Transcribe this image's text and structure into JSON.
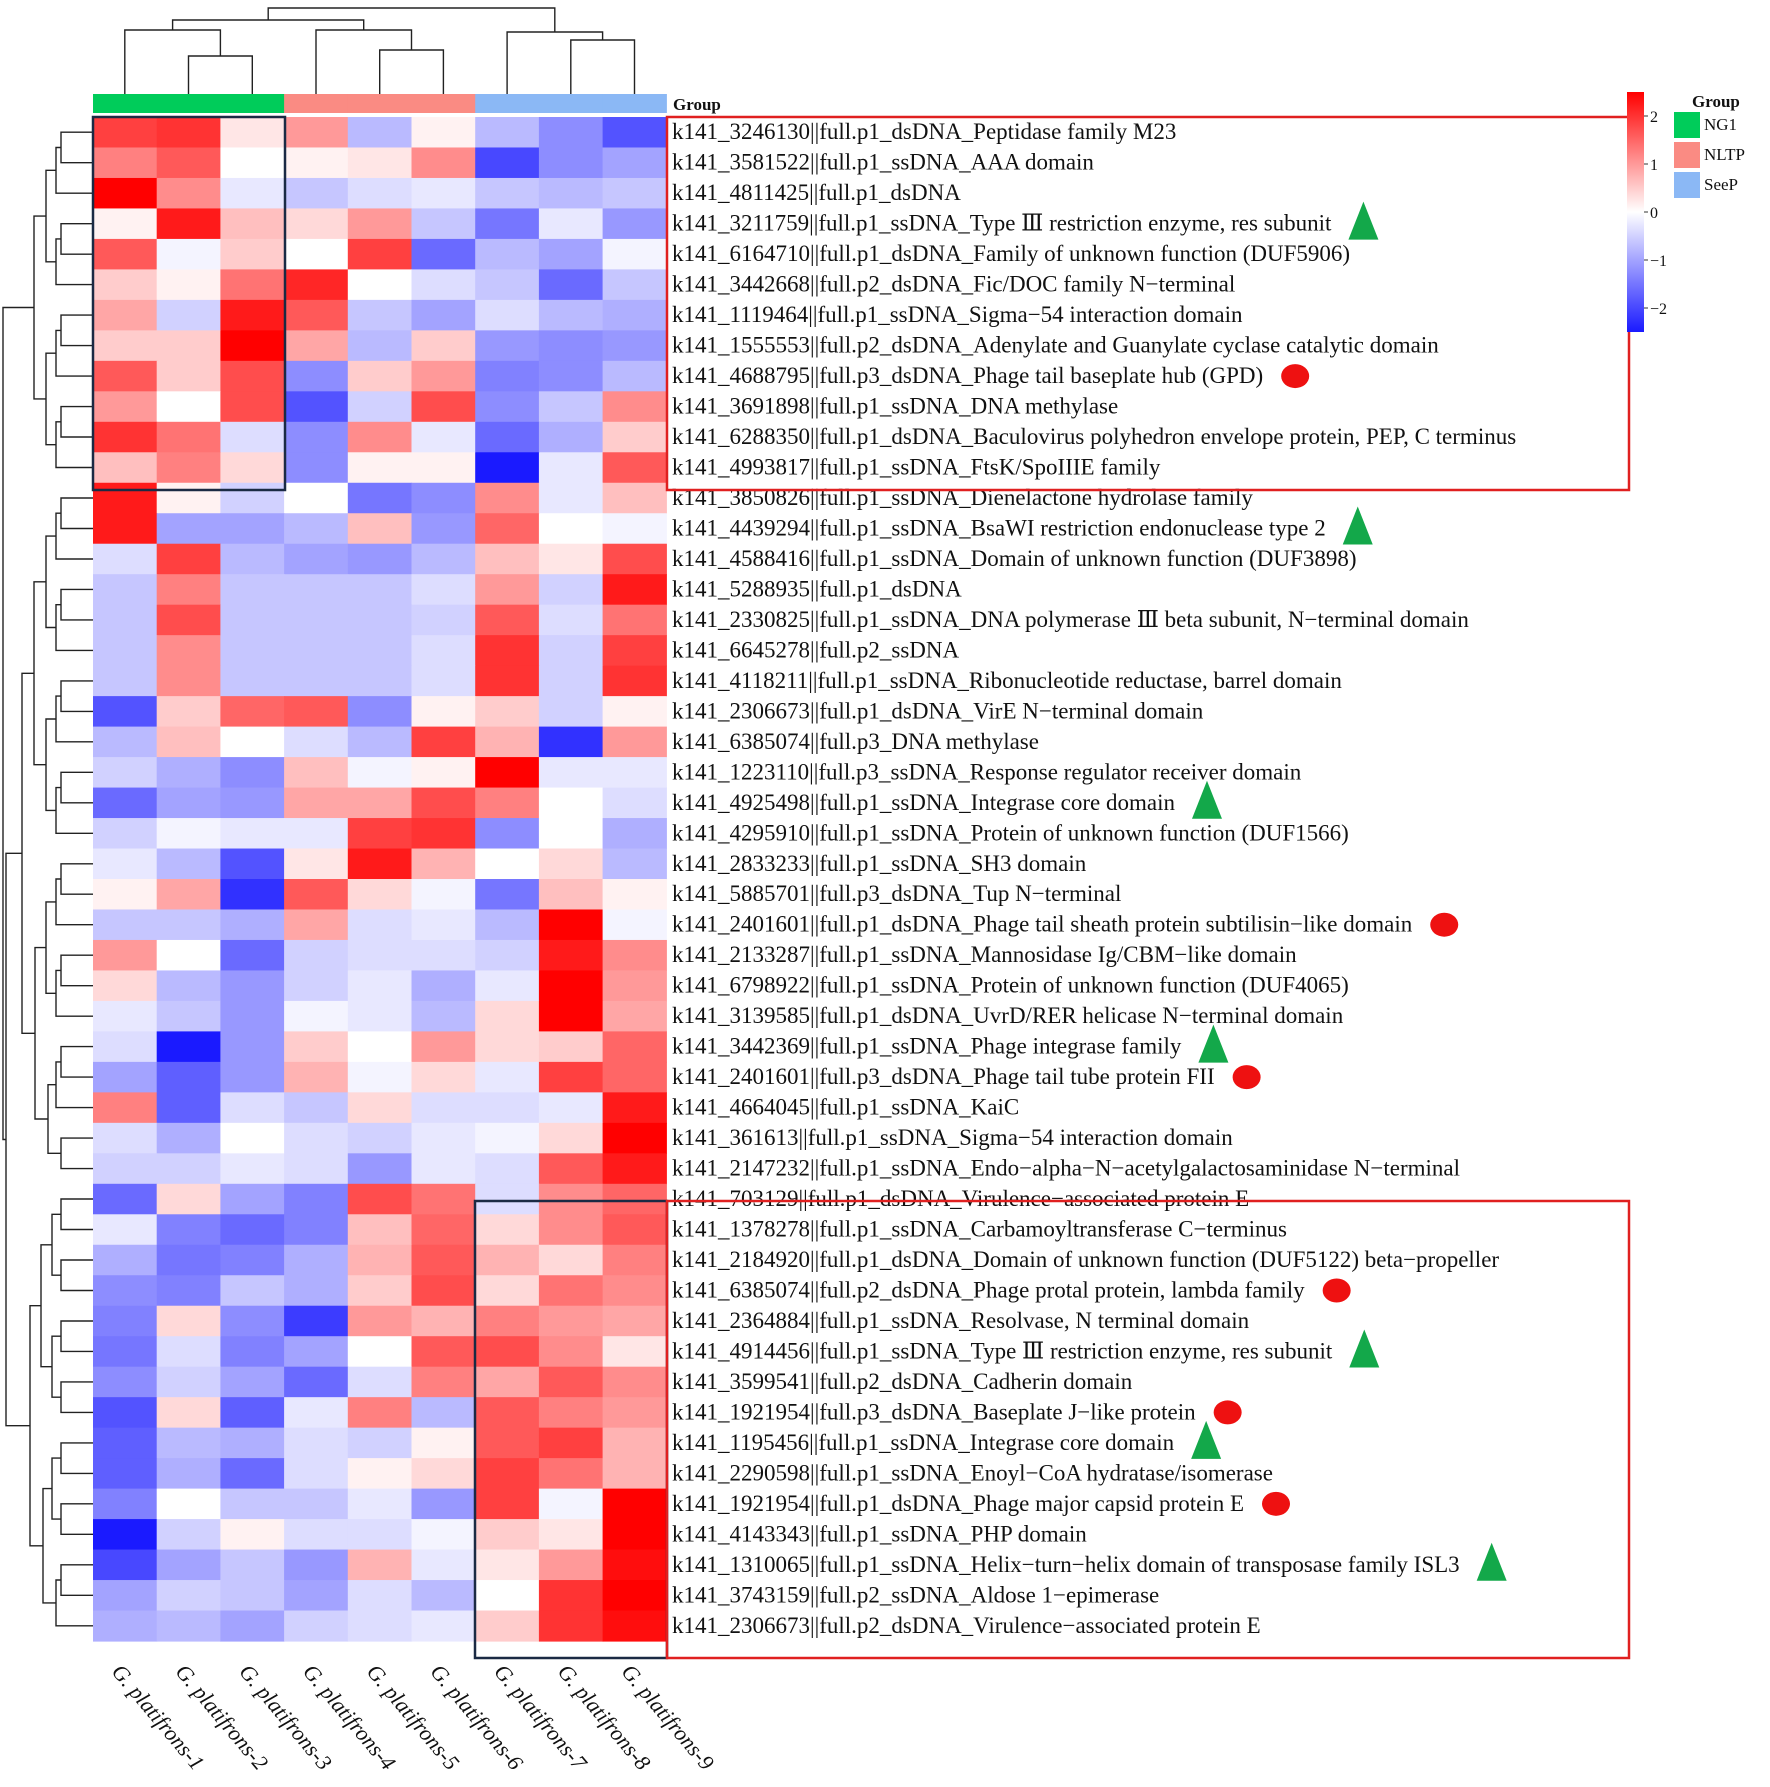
{
  "chart_data": {
    "type": "heatmap",
    "color_scale": {
      "min": -2,
      "max": 2,
      "ticks": [
        "2",
        "1",
        "0",
        "−1",
        "−2"
      ],
      "low": "#1a1aff",
      "mid": "#ffffff",
      "high": "#ff0000"
    },
    "group_bar_title": "Group",
    "legend": {
      "title": "Group",
      "entries": [
        {
          "name": "NG1",
          "color": "#00cc5a"
        },
        {
          "name": "NLTP",
          "color": "#fa8b83"
        },
        {
          "name": "SeeP",
          "color": "#8bb8f5"
        }
      ]
    },
    "columns": [
      "G. platifrons-1",
      "G. platifrons-2",
      "G. platifrons-3",
      "G. platifrons-4",
      "G. platifrons-5",
      "G. platifrons-6",
      "G. platifrons-7",
      "G. platifrons-8",
      "G. platifrons-9"
    ],
    "column_groups": [
      "NG1",
      "NG1",
      "NG1",
      "NLTP",
      "NLTP",
      "NLTP",
      "SeeP",
      "SeeP",
      "SeeP"
    ],
    "rows": [
      "k141_3246130||full.p1_dsDNA_Peptidase family M23",
      "k141_3581522||full.p1_ssDNA_AAA domain",
      "k141_4811425||full.p1_dsDNA",
      "k141_3211759||full.p1_ssDNA_Type Ⅲ restriction enzyme, res subunit",
      "k141_6164710||full.p1_dsDNA_Family of unknown function (DUF5906)",
      "k141_3442668||full.p2_dsDNA_Fic/DOC family N−terminal",
      "k141_1119464||full.p1_ssDNA_Sigma−54 interaction domain",
      "k141_1555553||full.p2_dsDNA_Adenylate and Guanylate cyclase catalytic domain",
      "k141_4688795||full.p3_dsDNA_Phage tail baseplate hub (GPD)",
      "k141_3691898||full.p1_ssDNA_DNA methylase",
      "k141_6288350||full.p1_dsDNA_Baculovirus polyhedron envelope protein, PEP, C terminus",
      "k141_4993817||full.p1_ssDNA_FtsK/SpoIIIE family",
      "k141_3850826||full.p1_ssDNA_Dienelactone hydrolase family",
      "k141_4439294||full.p1_ssDNA_BsaWI restriction endonuclease type 2",
      "k141_4588416||full.p1_ssDNA_Domain of unknown function (DUF3898)",
      "k141_5288935||full.p1_dsDNA",
      "k141_2330825||full.p1_ssDNA_DNA polymerase Ⅲ beta subunit, N−terminal domain",
      "k141_6645278||full.p2_ssDNA",
      "k141_4118211||full.p1_ssDNA_Ribonucleotide reductase, barrel domain",
      "k141_2306673||full.p1_dsDNA_VirE N−terminal domain",
      "k141_6385074||full.p3_DNA methylase",
      "k141_1223110||full.p3_ssDNA_Response regulator receiver domain",
      "k141_4925498||full.p1_ssDNA_Integrase core domain",
      "k141_4295910||full.p1_ssDNA_Protein of unknown function (DUF1566)",
      "k141_2833233||full.p1_ssDNA_SH3 domain",
      "k141_5885701||full.p3_dsDNA_Tup N−terminal",
      "k141_2401601||full.p1_dsDNA_Phage tail sheath protein subtilisin−like domain",
      "k141_2133287||full.p1_ssDNA_Mannosidase Ig/CBM−like domain",
      "k141_6798922||full.p1_ssDNA_Protein of unknown function (DUF4065)",
      "k141_3139585||full.p1_dsDNA_UvrD/RER helicase N−terminal domain",
      "k141_3442369||full.p1_ssDNA_Phage integrase family",
      "k141_2401601||full.p3_dsDNA_Phage tail tube protein FII",
      "k141_4664045||full.p1_ssDNA_KaiC",
      "k141_361613||full.p1_ssDNA_Sigma−54 interaction domain",
      "k141_2147232||full.p1_ssDNA_Endo−alpha−N−acetylgalactosaminidase N−terminal",
      "k141_703129||full.p1_dsDNA_Virulence−associated protein E",
      "k141_1378278||full.p1_ssDNA_Carbamoyltransferase C−terminus",
      "k141_2184920||full.p1_dsDNA_Domain of unknown function (DUF5122) beta−propeller",
      "k141_6385074||full.p2_dsDNA_Phage protal protein, lambda family",
      "k141_2364884||full.p1_ssDNA_Resolvase, N terminal domain",
      "k141_4914456||full.p1_ssDNA_Type Ⅲ restriction enzyme, res subunit",
      "k141_3599541||full.p2_dsDNA_Cadherin domain",
      "k141_1921954||full.p3_dsDNA_Baseplate J−like protein",
      "k141_1195456||full.p1_ssDNA_Integrase core domain",
      "k141_2290598||full.p1_ssDNA_Enoyl−CoA hydratase/isomerase",
      "k141_1921954||full.p1_dsDNA_Phage major capsid protein E",
      "k141_4143343||full.p1_ssDNA_PHP domain",
      "k141_1310065||full.p1_ssDNA_Helix−turn−helix domain of transposase family ISL3",
      "k141_3743159||full.p2_ssDNA_Aldose 1−epimerase",
      "k141_2306673||full.p2_dsDNA_Virulence−associated protein E"
    ],
    "row_markers": [
      "",
      "",
      "",
      "triangle",
      "",
      "",
      "",
      "",
      "circle",
      "",
      "",
      "",
      "",
      "triangle",
      "",
      "",
      "",
      "",
      "",
      "",
      "",
      "",
      "triangle",
      "",
      "",
      "",
      "circle",
      "",
      "",
      "",
      "triangle",
      "circle",
      "",
      "",
      "",
      "",
      "",
      "",
      "circle",
      "",
      "triangle",
      "",
      "circle",
      "triangle",
      "",
      "circle",
      "",
      "triangle",
      "",
      ""
    ],
    "marker_colors": {
      "triangle": "#13a84a",
      "circle": "#ee1111"
    },
    "values": [
      [
        1.5,
        1.6,
        0.2,
        0.8,
        -0.6,
        0.1,
        -0.6,
        -1.0,
        -1.5
      ],
      [
        1.0,
        1.3,
        0.0,
        0.1,
        0.2,
        0.9,
        -1.6,
        -1.0,
        -0.8
      ],
      [
        2.2,
        0.9,
        -0.2,
        -0.5,
        -0.3,
        -0.2,
        -0.5,
        -0.6,
        -0.5
      ],
      [
        0.1,
        1.8,
        0.5,
        0.3,
        0.8,
        -0.5,
        -1.2,
        -0.2,
        -0.9
      ],
      [
        1.3,
        -0.1,
        0.4,
        0.0,
        1.5,
        -1.3,
        -0.6,
        -0.8,
        -0.1
      ],
      [
        0.4,
        0.1,
        1.1,
        1.7,
        0.0,
        -0.3,
        -0.5,
        -1.3,
        -0.5
      ],
      [
        0.7,
        -0.4,
        1.8,
        1.3,
        -0.5,
        -0.8,
        -0.3,
        -0.6,
        -0.7
      ],
      [
        0.4,
        0.4,
        2.0,
        0.7,
        -0.6,
        0.4,
        -0.9,
        -1.0,
        -0.9
      ],
      [
        1.3,
        0.4,
        1.4,
        -1.0,
        0.4,
        0.8,
        -1.1,
        -1.0,
        -0.6
      ],
      [
        0.8,
        0.0,
        1.4,
        -1.5,
        -0.4,
        1.4,
        -1.0,
        -0.5,
        0.9
      ],
      [
        1.6,
        1.1,
        -0.3,
        -1.0,
        0.9,
        -0.2,
        -1.3,
        -0.7,
        0.4
      ],
      [
        0.5,
        1.0,
        0.3,
        -1.0,
        0.1,
        0.1,
        -2.2,
        -0.2,
        1.3
      ],
      [
        1.8,
        0.1,
        -0.4,
        0.0,
        -1.2,
        -1.0,
        0.9,
        -0.2,
        0.5
      ],
      [
        1.8,
        -0.8,
        -0.8,
        -0.6,
        0.5,
        -0.9,
        1.2,
        0.0,
        -0.1
      ],
      [
        -0.3,
        1.5,
        -0.6,
        -0.8,
        -0.9,
        -0.6,
        0.5,
        0.2,
        1.4
      ],
      [
        -0.5,
        1.0,
        -0.5,
        -0.5,
        -0.5,
        -0.3,
        0.8,
        -0.4,
        1.8
      ],
      [
        -0.5,
        1.4,
        -0.5,
        -0.5,
        -0.5,
        -0.4,
        1.3,
        -0.3,
        1.1
      ],
      [
        -0.5,
        0.9,
        -0.5,
        -0.5,
        -0.5,
        -0.3,
        1.6,
        -0.4,
        1.5
      ],
      [
        -0.5,
        0.9,
        -0.5,
        -0.5,
        -0.5,
        -0.3,
        1.6,
        -0.4,
        1.6
      ],
      [
        -1.5,
        0.4,
        1.2,
        1.3,
        -1.0,
        0.1,
        0.4,
        -0.4,
        0.1
      ],
      [
        -0.6,
        0.5,
        0.0,
        -0.3,
        -0.6,
        1.5,
        0.6,
        -1.8,
        0.8
      ],
      [
        -0.4,
        -0.7,
        -1.0,
        0.5,
        -0.1,
        0.1,
        2.2,
        -0.2,
        -0.2
      ],
      [
        -1.3,
        -0.8,
        -0.9,
        0.7,
        0.7,
        1.4,
        1.0,
        0.0,
        -0.3
      ],
      [
        -0.4,
        -0.1,
        -0.2,
        -0.2,
        1.5,
        1.6,
        -1.0,
        0.0,
        -0.7
      ],
      [
        -0.2,
        -0.6,
        -1.5,
        0.2,
        1.8,
        0.6,
        0.0,
        0.3,
        -0.6
      ],
      [
        0.1,
        0.7,
        -1.8,
        1.3,
        0.3,
        -0.1,
        -1.2,
        0.5,
        0.1
      ],
      [
        -0.5,
        -0.5,
        -0.7,
        0.7,
        -0.3,
        -0.2,
        -0.6,
        2.3,
        -0.1
      ],
      [
        0.8,
        0.0,
        -1.3,
        -0.4,
        -0.3,
        -0.3,
        -0.4,
        1.8,
        0.9
      ],
      [
        0.3,
        -0.6,
        -0.9,
        -0.4,
        -0.2,
        -0.7,
        -0.2,
        2.0,
        0.8
      ],
      [
        -0.2,
        -0.5,
        -0.9,
        -0.1,
        -0.2,
        -0.6,
        0.3,
        2.0,
        0.7
      ],
      [
        -0.3,
        -2.1,
        -0.9,
        0.4,
        0.0,
        0.8,
        0.3,
        0.4,
        1.2
      ],
      [
        -0.8,
        -1.4,
        -0.9,
        0.6,
        -0.1,
        0.3,
        -0.2,
        1.5,
        1.2
      ],
      [
        1.0,
        -1.4,
        -0.3,
        -0.5,
        0.3,
        -0.3,
        -0.3,
        -0.2,
        1.8
      ],
      [
        -0.3,
        -0.7,
        0.0,
        -0.3,
        -0.4,
        -0.2,
        -0.1,
        0.3,
        2.3
      ],
      [
        -0.4,
        -0.4,
        -0.2,
        -0.3,
        -0.9,
        -0.2,
        -0.3,
        1.3,
        1.8
      ],
      [
        -1.3,
        0.3,
        -0.8,
        -1.1,
        1.4,
        1.1,
        -0.3,
        0.9,
        1.2
      ],
      [
        -0.2,
        -1.1,
        -1.3,
        -1.1,
        0.5,
        1.2,
        0.3,
        0.9,
        1.3
      ],
      [
        -0.7,
        -1.2,
        -1.1,
        -0.7,
        0.6,
        1.3,
        0.6,
        0.3,
        1.0
      ],
      [
        -1.0,
        -1.1,
        -0.5,
        -0.7,
        0.4,
        1.4,
        0.3,
        1.1,
        0.9
      ],
      [
        -1.1,
        0.3,
        -1.0,
        -1.7,
        0.8,
        0.6,
        1.0,
        0.8,
        0.7
      ],
      [
        -1.2,
        -0.3,
        -1.1,
        -0.8,
        0.0,
        1.3,
        1.4,
        0.9,
        0.2
      ],
      [
        -1.0,
        -0.4,
        -0.8,
        -1.3,
        -0.3,
        1.0,
        0.7,
        1.3,
        0.9
      ],
      [
        -1.5,
        0.3,
        -1.4,
        -0.2,
        1.0,
        -0.6,
        1.3,
        1.0,
        0.8
      ],
      [
        -1.4,
        -0.6,
        -0.7,
        -0.3,
        -0.4,
        0.1,
        1.3,
        1.5,
        0.6
      ],
      [
        -1.4,
        -0.7,
        -1.3,
        -0.3,
        0.1,
        0.3,
        1.5,
        1.1,
        0.6
      ],
      [
        -1.1,
        0.0,
        -0.5,
        -0.5,
        -0.2,
        -0.9,
        1.5,
        -0.1,
        2.0
      ],
      [
        -2.0,
        -0.4,
        0.1,
        -0.3,
        -0.3,
        -0.1,
        0.4,
        0.2,
        2.0
      ],
      [
        -1.6,
        -0.8,
        -0.5,
        -0.9,
        0.6,
        -0.2,
        0.2,
        0.8,
        1.9
      ],
      [
        -0.8,
        -0.4,
        -0.5,
        -0.8,
        -0.3,
        -0.6,
        0.0,
        1.6,
        2.1
      ],
      [
        -0.7,
        -0.6,
        -0.8,
        -0.4,
        -0.3,
        -0.2,
        0.4,
        1.6,
        1.9
      ]
    ],
    "title": "",
    "xlabel": "",
    "ylabel": ""
  }
}
